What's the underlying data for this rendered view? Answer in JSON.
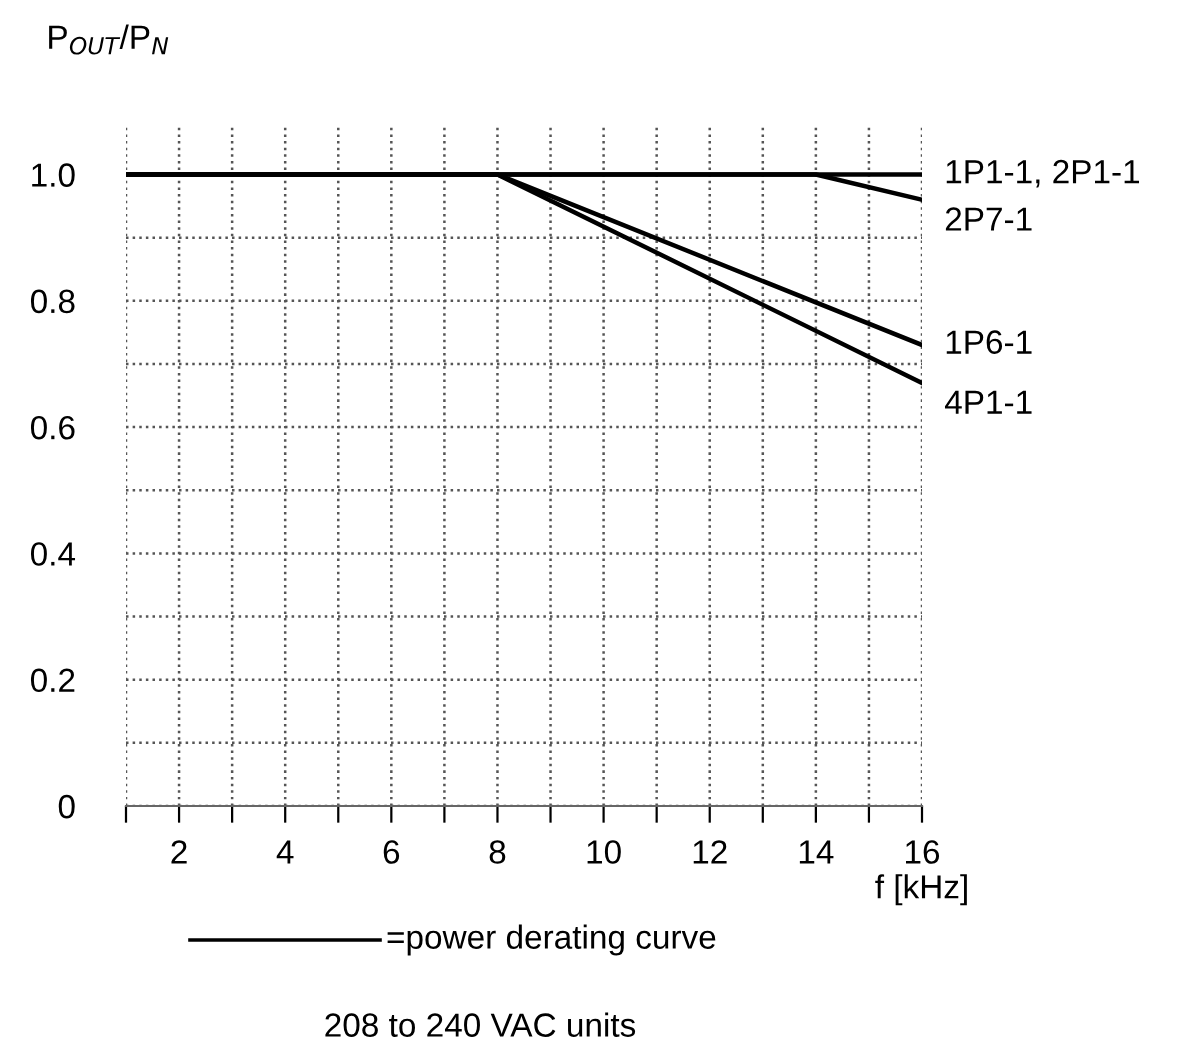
{
  "chart_data": {
    "type": "line",
    "ylabel": "P$_{OUT}$/P$_{N}$",
    "xlabel": "f [kHz]",
    "xlim": [
      1,
      16
    ],
    "ylim": [
      0,
      1.08
    ],
    "xticks": [
      {
        "value": 1,
        "label": null
      },
      2,
      {
        "value": 3,
        "label": null
      },
      4,
      {
        "value": 5,
        "label": null
      },
      6,
      {
        "value": 7,
        "label": null
      },
      8,
      {
        "value": 9,
        "label": null
      },
      10,
      {
        "value": 11,
        "label": null
      },
      12,
      {
        "value": 13,
        "label": null
      },
      14,
      {
        "value": 15,
        "label": null
      },
      16
    ],
    "yticks": [
      0,
      {
        "value": 0.1,
        "label": null
      },
      0.2,
      {
        "value": 0.3,
        "label": null
      },
      0.4,
      {
        "value": 0.5,
        "label": null
      },
      0.6,
      {
        "value": 0.7,
        "label": null
      },
      0.8,
      {
        "value": 0.9,
        "label": null
      },
      {
        "value": 1.0,
        "label": "1.0"
      }
    ],
    "grid": true,
    "legend": false,
    "line_style": "solid",
    "series": [
      {
        "name": "1P1-1, 2P1-1",
        "color": "#000000",
        "x": [
          1,
          16
        ],
        "values": [
          1.0,
          1.0
        ]
      },
      {
        "name": "2P7-1",
        "color": "#000000",
        "x": [
          1,
          14,
          16
        ],
        "values": [
          1.0,
          1.0,
          0.96
        ]
      },
      {
        "name": "1P6-1",
        "color": "#000000",
        "x": [
          1,
          8,
          16
        ],
        "values": [
          1.0,
          1.0,
          0.73
        ]
      },
      {
        "name": "4P1-1",
        "color": "#000000",
        "x": [
          1,
          8,
          16
        ],
        "values": [
          1.0,
          1.0,
          0.67
        ]
      }
    ],
    "annotations": [
      "=power derating curve",
      "208 to 240 VAC units"
    ]
  }
}
